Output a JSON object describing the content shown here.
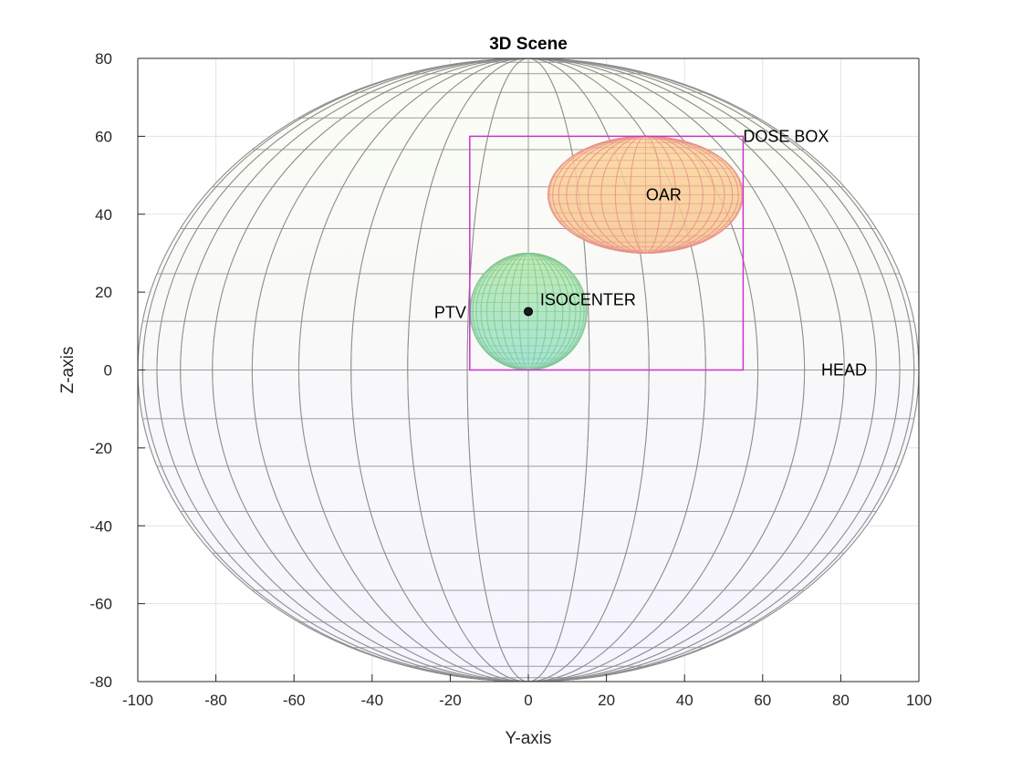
{
  "chart_data": {
    "type": "scatter",
    "title": "3D Scene",
    "xlabel": "Y-axis",
    "ylabel": "Z-axis",
    "xlim": [
      -100,
      100
    ],
    "ylim": [
      -80,
      80
    ],
    "xticks": [
      -100,
      -80,
      -60,
      -40,
      -20,
      0,
      20,
      40,
      60,
      80,
      100
    ],
    "yticks": [
      -80,
      -60,
      -40,
      -20,
      0,
      20,
      40,
      60,
      80
    ],
    "grid": true,
    "objects": [
      {
        "label": "HEAD",
        "shape": "ellipsoid",
        "center": [
          0,
          0
        ],
        "radii": [
          100,
          80
        ],
        "color": "#f2f5ff",
        "wire_color": "#8c8c8c",
        "label_at": [
          75,
          0
        ]
      },
      {
        "label": "OAR",
        "shape": "ellipsoid",
        "center": [
          30,
          45
        ],
        "radii": [
          25,
          15
        ],
        "color": "#f9c98c",
        "wire_color": "#e8908a",
        "label_at": [
          30,
          45
        ]
      },
      {
        "label": "PTV",
        "shape": "sphere",
        "center": [
          0,
          15
        ],
        "radii": [
          15,
          15
        ],
        "color": "#9fe0b9",
        "wire_color": "#7fc48f",
        "label_at": [
          -20,
          15
        ]
      },
      {
        "label": "DOSE BOX",
        "shape": "box",
        "range_x": [
          -15,
          55
        ],
        "range_y": [
          0,
          60
        ],
        "color": "#cc33cc",
        "label_at": [
          55,
          60
        ]
      },
      {
        "label": "ISOCENTER",
        "shape": "point",
        "x": 0,
        "y": 15,
        "color": "#1a1a1a",
        "label_at": [
          3,
          18
        ]
      }
    ]
  }
}
